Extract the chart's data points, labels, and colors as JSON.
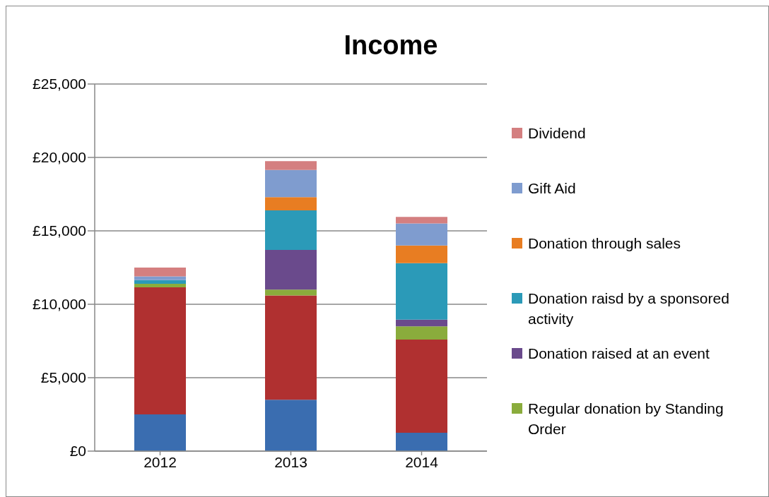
{
  "chart_data": {
    "type": "bar",
    "title": "Income",
    "stacked": true,
    "categories": [
      "2012",
      "2013",
      "2014"
    ],
    "series": [
      {
        "color": "#3a6db0",
        "values": [
          2500,
          3500,
          1250
        ]
      },
      {
        "color": "#b03030",
        "values": [
          8650,
          7100,
          6350
        ]
      },
      {
        "name": "Regular donation by Standing Order",
        "color": "#8aac3c",
        "values": [
          250,
          400,
          900
        ]
      },
      {
        "name": "Donation raised at an event",
        "color": "#6a4a8c",
        "values": [
          0,
          2700,
          450
        ]
      },
      {
        "name": "Donation raisd by a sponsored activity",
        "color": "#2b9ab8",
        "values": [
          250,
          2700,
          3850
        ]
      },
      {
        "name": "Donation through sales",
        "color": "#e87d22",
        "values": [
          0,
          900,
          1200
        ]
      },
      {
        "name": "Gift Aid",
        "color": "#7f9ccf",
        "values": [
          250,
          1850,
          1500
        ]
      },
      {
        "name": "Dividend",
        "color": "#d47f80",
        "values": [
          600,
          600,
          450
        ]
      }
    ],
    "ylim": [
      0,
      25000
    ],
    "yticks": [
      {
        "value": 0,
        "label": "£0"
      },
      {
        "value": 5000,
        "label": "£5,000"
      },
      {
        "value": 10000,
        "label": "£10,000"
      },
      {
        "value": 15000,
        "label": "£15,000"
      },
      {
        "value": 20000,
        "label": "£20,000"
      },
      {
        "value": 25000,
        "label": "£25,000"
      }
    ],
    "grid": "y",
    "legend": "right"
  }
}
